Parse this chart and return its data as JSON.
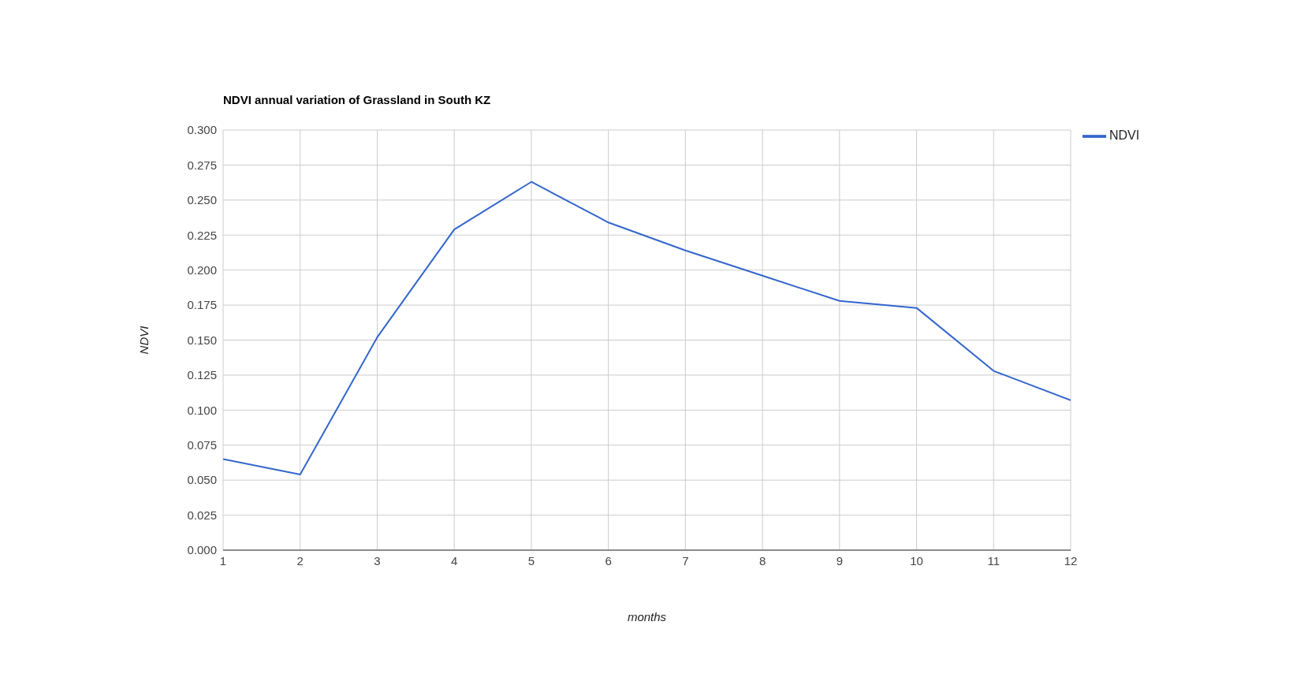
{
  "chart_data": {
    "type": "line",
    "title": "NDVI annual variation of Grassland in South KZ",
    "xlabel": "months",
    "ylabel": "NDVI",
    "x": [
      1,
      2,
      3,
      4,
      5,
      6,
      7,
      8,
      9,
      10,
      11,
      12
    ],
    "series": [
      {
        "name": "NDVI",
        "color": "#3366cc",
        "values": [
          0.065,
          0.054,
          0.152,
          0.229,
          0.263,
          0.234,
          0.214,
          0.196,
          0.178,
          0.173,
          0.128,
          0.107
        ]
      }
    ],
    "xlim": [
      1,
      12
    ],
    "xticks": [
      1,
      2,
      3,
      4,
      5,
      6,
      7,
      8,
      9,
      10,
      11,
      12
    ],
    "ylim": [
      0,
      0.3
    ],
    "yticks": [
      {
        "value": 0,
        "label": "0.000"
      },
      {
        "value": 0.025,
        "label": "0.025"
      },
      {
        "value": 0.05,
        "label": "0.050"
      },
      {
        "value": 0.075,
        "label": "0.075"
      },
      {
        "value": 0.1,
        "label": "0.100"
      },
      {
        "value": 0.125,
        "label": "0.125"
      },
      {
        "value": 0.15,
        "label": "0.150"
      },
      {
        "value": 0.175,
        "label": "0.175"
      },
      {
        "value": 0.2,
        "label": "0.200"
      },
      {
        "value": 0.225,
        "label": "0.225"
      },
      {
        "value": 0.25,
        "label": "0.250"
      },
      {
        "value": 0.275,
        "label": "0.275"
      },
      {
        "value": 0.3,
        "label": "0.300"
      }
    ],
    "grid": true,
    "legend": "top right",
    "marker": "none",
    "line_style": "solid"
  }
}
